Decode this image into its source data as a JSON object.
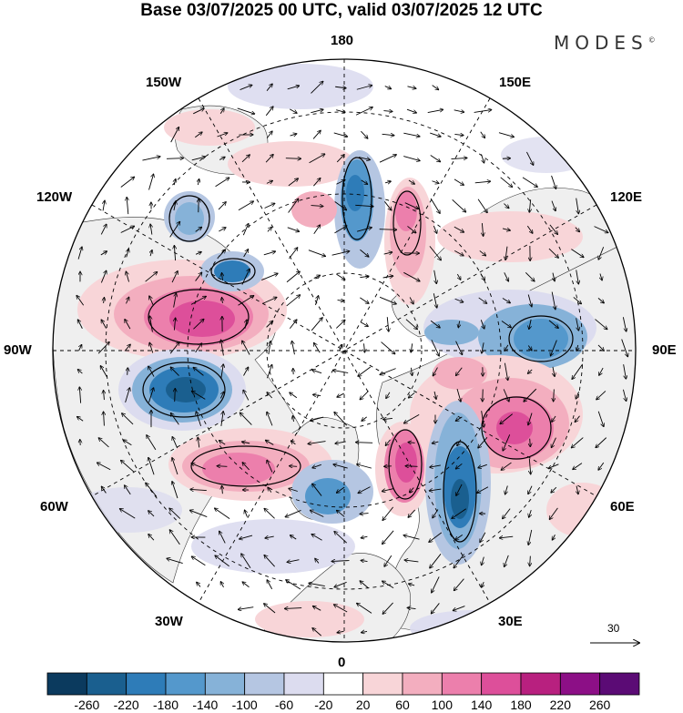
{
  "title": "Base 03/07/2025 00 UTC, valid 03/07/2025 12 UTC",
  "brand": "MODES",
  "brand_mark": "©",
  "lon_labels": {
    "top": "180",
    "bottom": "0",
    "left": "90W",
    "right": "90E",
    "nw1": "150W",
    "nw2": "120W",
    "ne1": "150E",
    "ne2": "120E",
    "sw1": "60W",
    "sw2": "30W",
    "se1": "60E",
    "se2": "30E"
  },
  "reference_vector": {
    "value": "30",
    "icon": "arrow-right-icon"
  },
  "colorbar": {
    "ticks": [
      "-260",
      "-220",
      "-180",
      "-140",
      "-100",
      "-60",
      "-20",
      "20",
      "60",
      "100",
      "140",
      "180",
      "220",
      "260"
    ],
    "colors": [
      "#0b3a5e",
      "#1a5f8f",
      "#2e7cb8",
      "#5498cc",
      "#86b2d8",
      "#b5c6e2",
      "#dcdcef",
      "#ffffff",
      "#f8d5d8",
      "#f3aebf",
      "#ec7fac",
      "#dd4f9a",
      "#b8207f",
      "#8c0f86",
      "#5b0b75"
    ]
  },
  "colors": {
    "land": "#efefef",
    "ocean": "#ffffff",
    "coast": "#222222"
  }
}
